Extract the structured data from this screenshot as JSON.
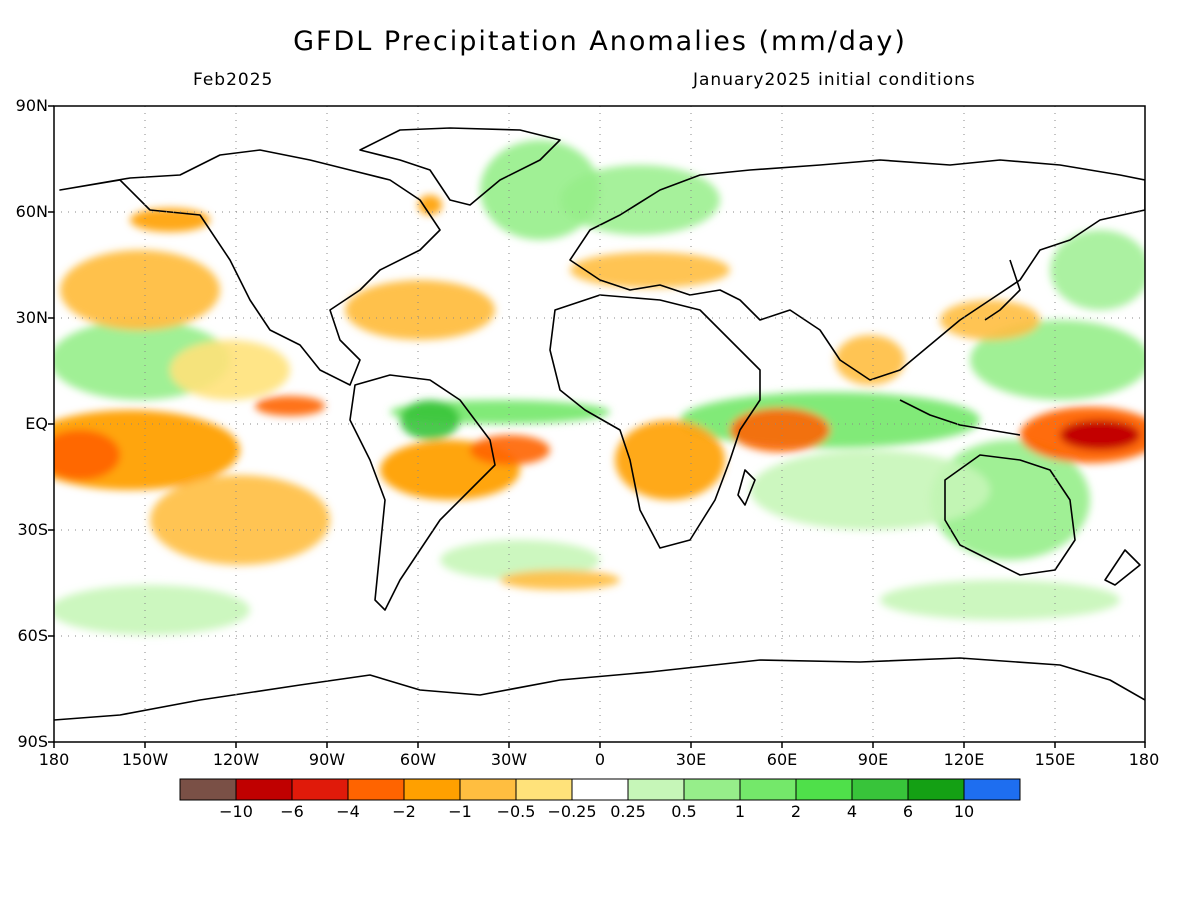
{
  "header": {
    "title": "GFDL Precipitation Anomalies (mm/day)",
    "subtitle_left": "Feb2025",
    "subtitle_right": "January2025 initial conditions"
  },
  "axes": {
    "lat_labels": [
      "90N",
      "60N",
      "30N",
      "EQ",
      "30S",
      "60S",
      "90S"
    ],
    "lon_labels": [
      "180",
      "150W",
      "120W",
      "90W",
      "60W",
      "30W",
      "0",
      "30E",
      "60E",
      "90E",
      "120E",
      "150E",
      "180"
    ],
    "lat_range": [
      -90,
      90
    ],
    "lon_range": [
      -180,
      180
    ],
    "grid": "dotted"
  },
  "legend": {
    "colors": [
      "#7a5046",
      "#c00000",
      "#e01a0a",
      "#ff6400",
      "#ffa000",
      "#ffbe40",
      "#ffe27a",
      "#ffffff",
      "#c6f6b8",
      "#96ee8a",
      "#74e86a",
      "#4fe04a",
      "#38c43a",
      "#14a014",
      "#1e6ef0"
    ],
    "tick_labels": [
      "−10",
      "−6",
      "−4",
      "−2",
      "−1",
      "−0.5",
      "−0.25",
      "0.25",
      "0.5",
      "1",
      "2",
      "4",
      "6",
      "10"
    ]
  }
}
